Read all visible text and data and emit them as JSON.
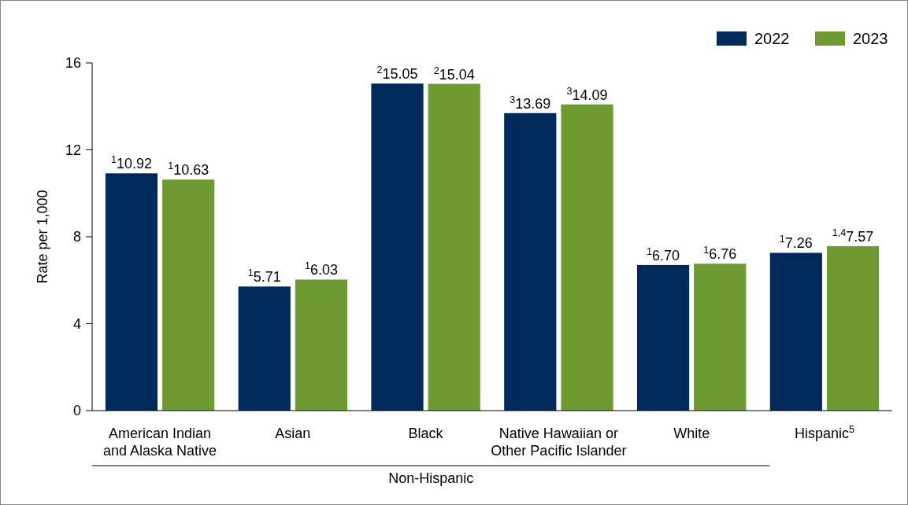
{
  "chart_data": {
    "type": "bar",
    "ylabel": "Rate per 1,000",
    "categories": [
      "American Indian\nand Alaska Native",
      "Asian",
      "Black",
      "Native Hawaiian or\nOther Pacific Islander",
      "White",
      "Hispanic$^{5}$"
    ],
    "series": [
      {
        "name": "2022",
        "color": "#002a5c",
        "values": [
          10.92,
          5.71,
          15.05,
          13.69,
          6.7,
          7.26
        ],
        "value_labels": [
          "$^{1}$10.92",
          "$^{1}$5.71",
          "$^{2}$15.05",
          "$^{3}$13.69",
          "$^{1}$6.70",
          "$^{1}$7.26"
        ]
      },
      {
        "name": "2023",
        "color": "#6d9b32",
        "values": [
          10.63,
          6.03,
          15.04,
          14.09,
          6.76,
          7.57
        ],
        "value_labels": [
          "$^{1}$10.63",
          "$^{1}$6.03",
          "$^{2}$15.04",
          "$^{3}$14.09",
          "$^{1}$6.76",
          "$^{1,4}$7.57"
        ]
      }
    ],
    "ylim": [
      0,
      16
    ],
    "yticks": [
      0,
      4,
      8,
      12,
      16
    ],
    "grid": false,
    "legend": "top right",
    "annotations": [
      "Non-Hispanic"
    ]
  }
}
